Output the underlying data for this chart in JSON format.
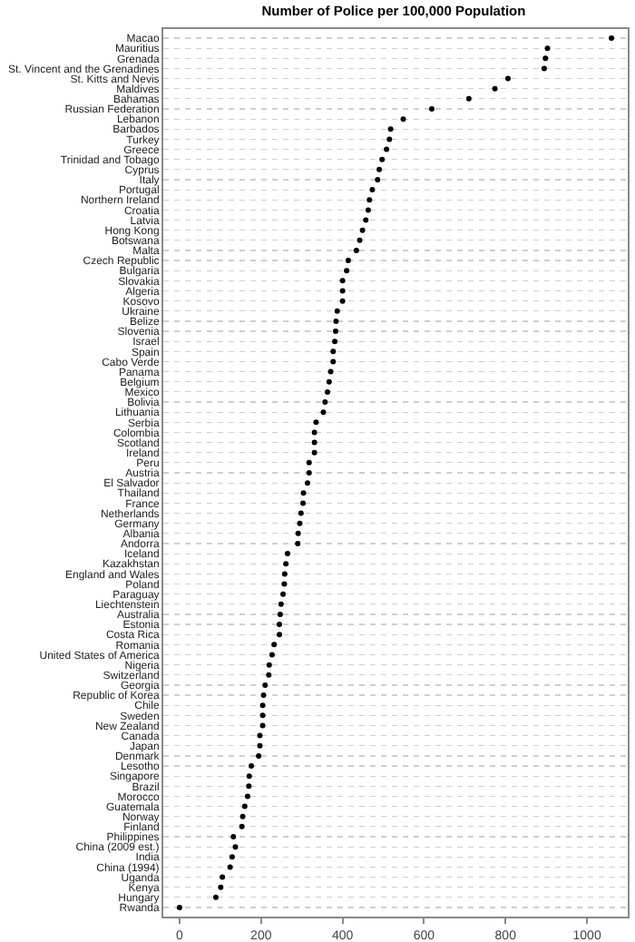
{
  "chart_data": {
    "type": "scatter",
    "orientation": "horizontal",
    "title": "Number of Police per 100,000 Population",
    "categories": [
      "Macao",
      "Mauritius",
      "Grenada",
      "St. Vincent and the Grenadines",
      "St. Kitts and Nevis",
      "Maldives",
      "Bahamas",
      "Russian Federation",
      "Lebanon",
      "Barbados",
      "Turkey",
      "Greece",
      "Trinidad and Tobago",
      "Cyprus",
      "Italy",
      "Portugal",
      "Northern Ireland",
      "Croatia",
      "Latvia",
      "Hong Kong",
      "Botswana",
      "Malta",
      "Czech Republic",
      "Bulgaria",
      "Slovakia",
      "Algeria",
      "Kosovo",
      "Ukraine",
      "Belize",
      "Slovenia",
      "Israel",
      "Spain",
      "Cabo Verde",
      "Panama",
      "Belgium",
      "Mexico",
      "Bolivia",
      "Lithuania",
      "Serbia",
      "Colombia",
      "Scotland",
      "Ireland",
      "Peru",
      "Austria",
      "El Salvador",
      "Thailand",
      "France",
      "Netherlands",
      "Germany",
      "Albania",
      "Andorra",
      "Iceland",
      "Kazakhstan",
      "England and Wales",
      "Poland",
      "Paraguay",
      "Liechtenstein",
      "Australia",
      "Estonia",
      "Costa Rica",
      "Romania",
      "United States of America",
      "Nigeria",
      "Switzerland",
      "Georgia",
      "Republic of Korea",
      "Chile",
      "Sweden",
      "New Zealand",
      "Canada",
      "Japan",
      "Denmark",
      "Lesotho",
      "Singapore",
      "Brazil",
      "Morocco",
      "Guatemala",
      "Norway",
      "Finland",
      "Philippines",
      "China (2009 est.)",
      "India",
      "China (1994)",
      "Uganda",
      "Kenya",
      "Hungary",
      "Rwanda"
    ],
    "series": [
      {
        "color": "#000000",
        "values": [
          1060,
          903,
          898,
          895,
          806,
          774,
          710,
          619,
          549,
          518,
          515,
          508,
          497,
          490,
          486,
          473,
          466,
          463,
          457,
          449,
          442,
          434,
          414,
          410,
          400,
          400,
          400,
          387,
          384,
          383,
          381,
          377,
          377,
          371,
          367,
          363,
          357,
          353,
          335,
          331,
          331,
          331,
          318,
          318,
          314,
          304,
          303,
          298,
          295,
          291,
          290,
          265,
          261,
          258,
          257,
          254,
          249,
          247,
          245,
          245,
          232,
          227,
          220,
          219,
          210,
          206,
          204,
          204,
          204,
          197,
          197,
          194,
          176,
          171,
          170,
          167,
          160,
          155,
          153,
          132,
          137,
          129,
          124,
          105,
          101,
          89,
          0
        ]
      }
    ],
    "xlim": [
      -40,
      1100
    ],
    "xticks": [
      0,
      200,
      400,
      600,
      800,
      1000
    ],
    "grid": "y",
    "marker": "circle"
  }
}
